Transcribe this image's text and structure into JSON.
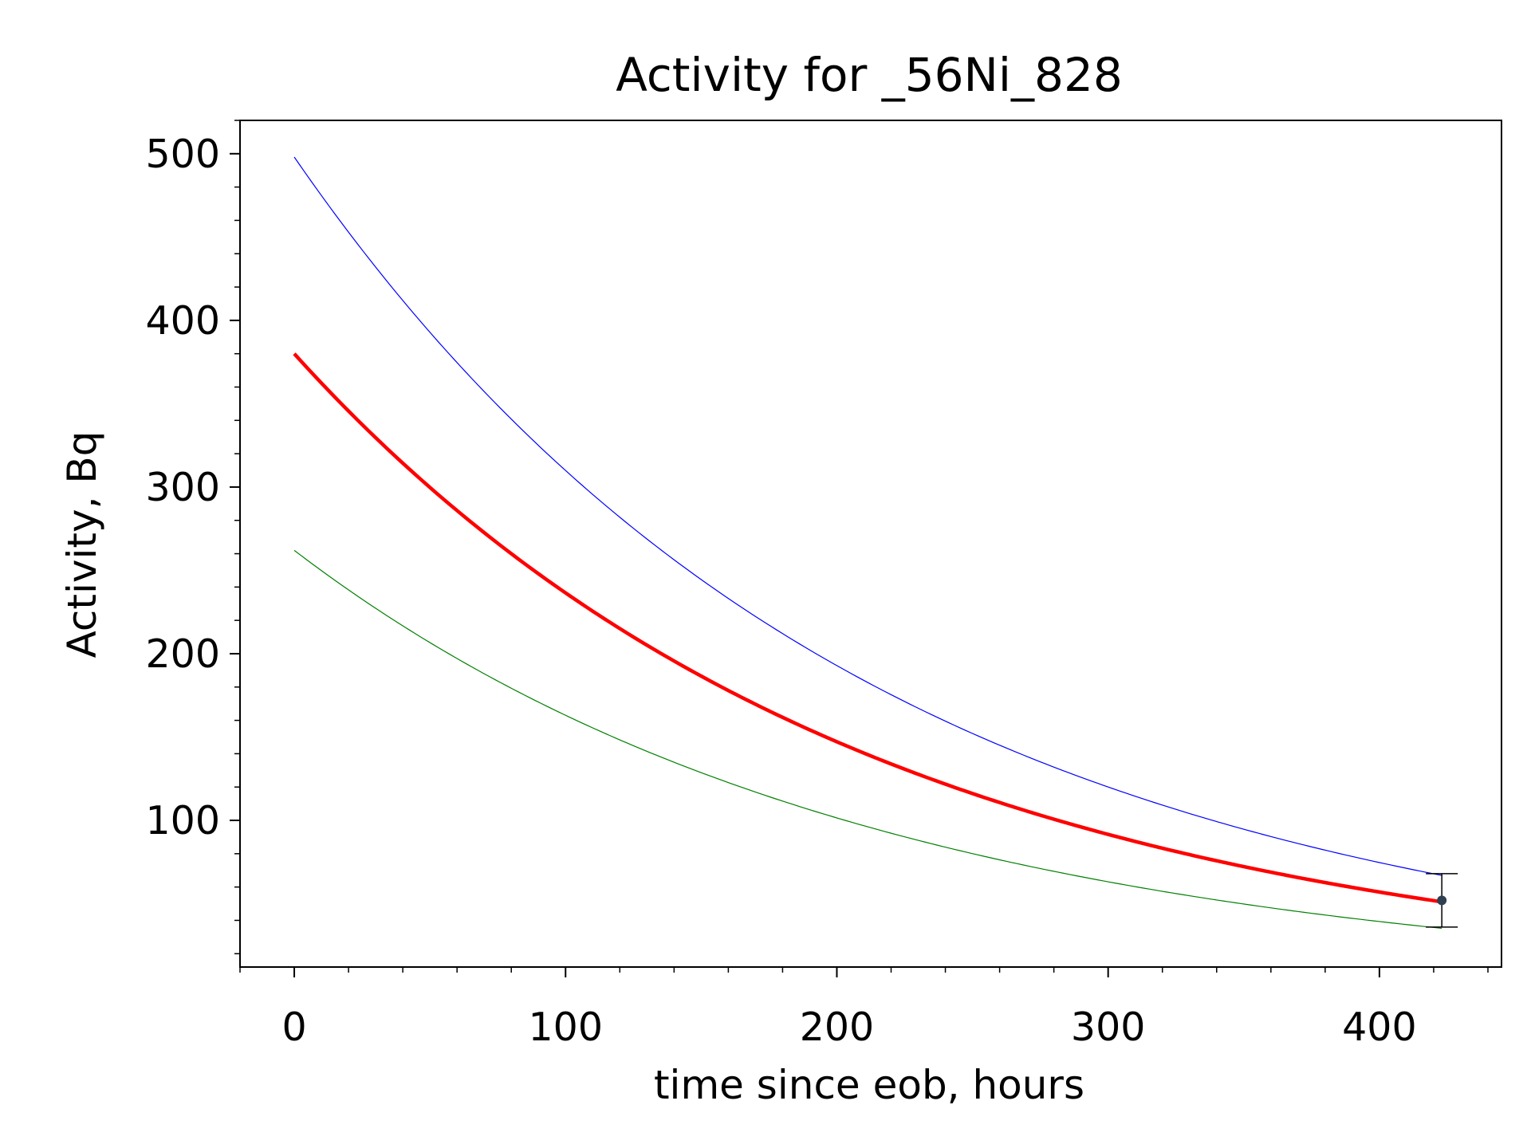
{
  "chart_data": {
    "type": "line",
    "title": "Activity for _56Ni_828",
    "xlabel": "time since eob, hours",
    "ylabel": "Activity, Bq",
    "xlim": [
      -20,
      445
    ],
    "ylim": [
      12,
      520
    ],
    "x_ticks": [
      0,
      100,
      200,
      300,
      400
    ],
    "y_ticks": [
      100,
      200,
      300,
      400,
      500
    ],
    "x_minor_step": 20,
    "y_minor_step": 20,
    "grid": false,
    "legend": "none",
    "decay_constant_per_hour": 0.004743,
    "series": [
      {
        "role": "upper bound",
        "color": "#0000ff",
        "linewidth": 1.2,
        "x": [
          0,
          50,
          100,
          150,
          200,
          250,
          300,
          350,
          400,
          423
        ],
        "y": [
          498,
          393.7,
          311.3,
          246.1,
          194.6,
          153.9,
          121.7,
          96.2,
          76.1,
          68.2
        ]
      },
      {
        "role": "best fit",
        "color": "#ff0000",
        "linewidth": 4.5,
        "x": [
          0,
          50,
          100,
          150,
          200,
          250,
          300,
          350,
          400,
          423
        ],
        "y": [
          380,
          300.4,
          237.5,
          187.8,
          148.5,
          117.4,
          92.8,
          73.4,
          58.0,
          52.0
        ]
      },
      {
        "role": "lower bound",
        "color": "#008000",
        "linewidth": 1.2,
        "x": [
          0,
          50,
          100,
          150,
          200,
          250,
          300,
          350,
          400,
          423
        ],
        "y": [
          262,
          207.1,
          163.8,
          129.5,
          102.4,
          80.9,
          64.0,
          50.6,
          40.0,
          35.9
        ]
      }
    ],
    "measurement": {
      "x": 423,
      "y": 52,
      "yerr_low": 16,
      "yerr_high": 16,
      "color": "#2f4050"
    }
  }
}
